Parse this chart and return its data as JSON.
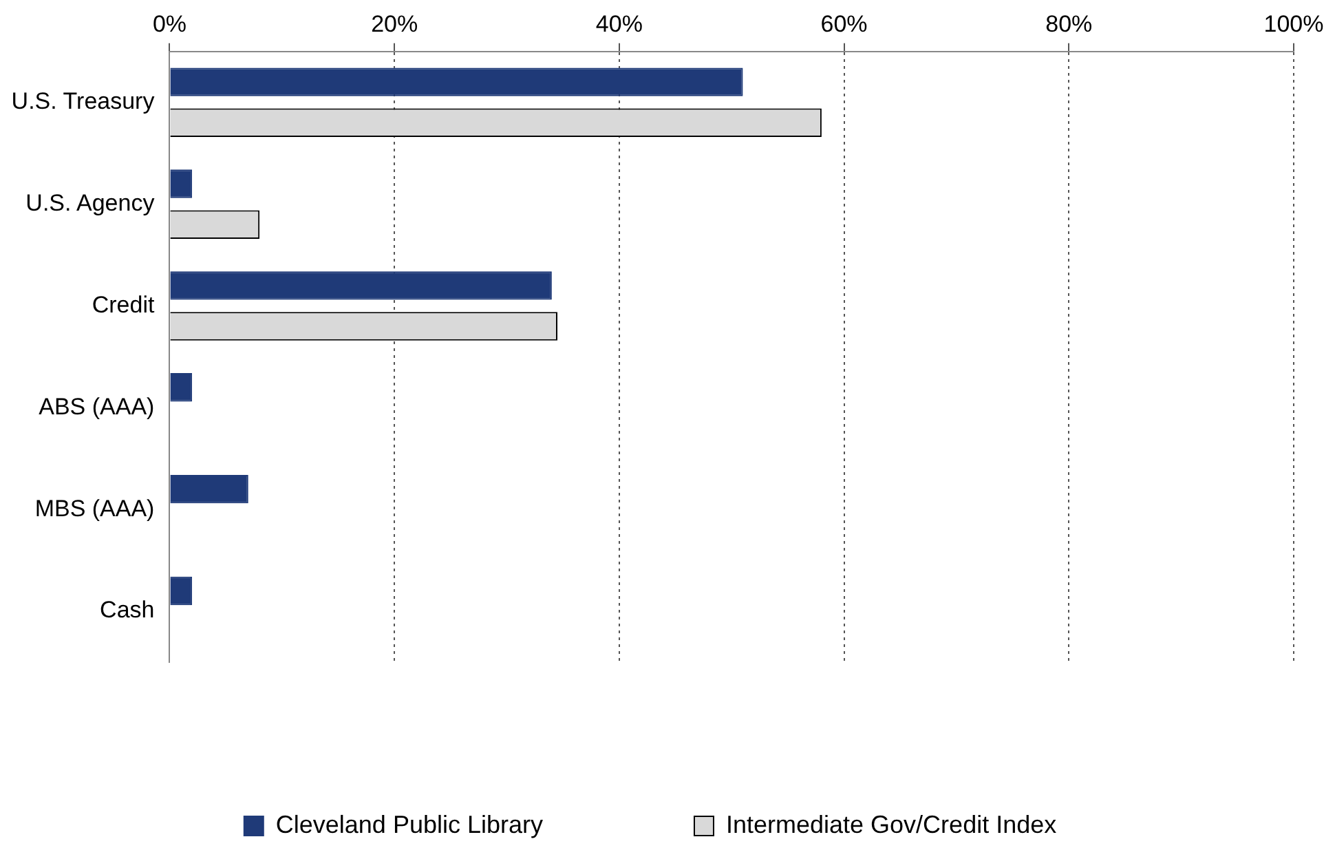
{
  "chart_data": {
    "type": "bar",
    "orientation": "horizontal",
    "categories": [
      "U.S. Treasury",
      "U.S. Agency",
      "Credit",
      "ABS (AAA)",
      "MBS (AAA)",
      "Cash"
    ],
    "series": [
      {
        "name": "Cleveland Public Library",
        "color": "#1f3a78",
        "values": [
          51,
          2,
          34,
          2,
          7,
          2
        ]
      },
      {
        "name": "Intermediate Gov/Credit Index",
        "color": "#d9d9d9",
        "values": [
          58,
          8,
          34.5,
          0,
          0,
          0
        ]
      }
    ],
    "xlim": [
      0,
      100
    ],
    "xticks": [
      {
        "value": 0,
        "label": "0%"
      },
      {
        "value": 20,
        "label": "20%"
      },
      {
        "value": 40,
        "label": "40%"
      },
      {
        "value": 60,
        "label": "60%"
      },
      {
        "value": 80,
        "label": "80%"
      },
      {
        "value": 100,
        "label": "100%"
      }
    ],
    "grid": "x",
    "line_style": "dotted",
    "legend": "bottom"
  }
}
